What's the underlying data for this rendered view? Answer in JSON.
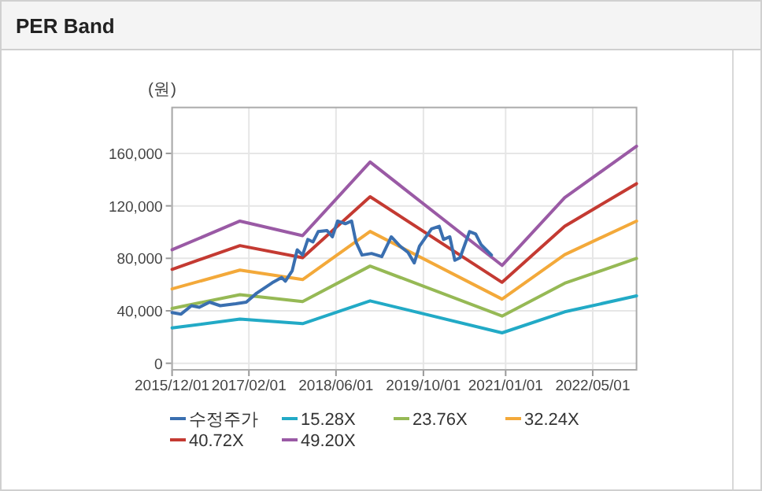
{
  "chart_data": {
    "type": "line",
    "title": "PER Band",
    "ylabel": "(원)",
    "x": [
      "2015-12-01",
      "2016-12-13",
      "2017-11-27",
      "2018-12-08",
      "2020-12-12",
      "2021-11-26",
      "2022-12-31"
    ],
    "series": [
      {
        "name": "수정주가",
        "color": "#3a6fb0",
        "x": [
          "2015-12-01",
          "2016-01-20",
          "2016-03-18",
          "2016-05-01",
          "2016-06-27",
          "2016-08-25",
          "2016-11-20",
          "2017-01-17",
          "2017-03-16",
          "2017-06-11",
          "2017-08-02",
          "2017-08-23",
          "2017-09-30",
          "2017-10-28",
          "2017-11-27",
          "2017-12-26",
          "2018-01-24",
          "2018-02-22",
          "2018-04-12",
          "2018-05-12",
          "2018-06-10",
          "2018-07-23",
          "2018-08-27",
          "2018-09-20",
          "2018-10-24",
          "2018-12-16",
          "2019-02-11",
          "2019-04-05",
          "2019-05-24",
          "2019-07-07",
          "2019-08-11",
          "2019-09-09",
          "2019-11-15",
          "2019-12-28",
          "2020-01-21",
          "2020-02-25",
          "2020-03-24",
          "2020-04-22",
          "2020-06-14",
          "2020-07-18",
          "2020-08-17",
          "2020-10-14"
        ],
        "values": [
          38700,
          37500,
          43900,
          42700,
          46600,
          43900,
          45400,
          46600,
          53400,
          61400,
          65400,
          62600,
          70500,
          86500,
          82500,
          94400,
          92500,
          100400,
          101200,
          96400,
          108400,
          106400,
          108400,
          92500,
          82500,
          83700,
          81300,
          96400,
          89300,
          84500,
          76500,
          89300,
          102400,
          104400,
          94400,
          96400,
          78500,
          80500,
          100400,
          98500,
          90500,
          82500
        ]
      },
      {
        "name": "15.28X",
        "color": "#22aac6",
        "values": [
          26900,
          33700,
          30200,
          47600,
          23200,
          39200,
          51400
        ]
      },
      {
        "name": "23.76X",
        "color": "#96b955",
        "values": [
          41800,
          52300,
          47000,
          74100,
          36000,
          61000,
          79900
        ]
      },
      {
        "name": "32.24X",
        "color": "#f3a93a",
        "values": [
          56700,
          71000,
          63800,
          100500,
          48900,
          82800,
          108400
        ]
      },
      {
        "name": "40.72X",
        "color": "#c43a32",
        "values": [
          71600,
          89700,
          80500,
          127000,
          61700,
          104500,
          136900
        ]
      },
      {
        "name": "49.20X",
        "color": "#9a5aa5",
        "values": [
          86500,
          108400,
          97300,
          153400,
          74600,
          126300,
          165400
        ]
      }
    ],
    "xlim": [
      "2015-12-01",
      "2022-12-31"
    ],
    "xticks": [
      {
        "value": "2015-12-01",
        "label": "2015/12/01"
      },
      {
        "value": "2017-02-01",
        "label": "2017/02/01"
      },
      {
        "value": "2018-06-01",
        "label": "2018/06/01"
      },
      {
        "value": "2019-10-01",
        "label": "2019/10/01"
      },
      {
        "value": "2021-01-01",
        "label": "2021/01/01"
      },
      {
        "value": "2022-05-01",
        "label": "2022/05/01"
      }
    ],
    "ylim": [
      -5000,
      195000
    ],
    "yticks": [
      {
        "value": 0,
        "label": "0"
      },
      {
        "value": 40000,
        "label": "40,000"
      },
      {
        "value": 80000,
        "label": "80,000"
      },
      {
        "value": 120000,
        "label": "120,000"
      },
      {
        "value": 160000,
        "label": "160,000"
      }
    ],
    "grid": true,
    "legend": "bottom",
    "marker": "none",
    "line_style": "solid"
  }
}
